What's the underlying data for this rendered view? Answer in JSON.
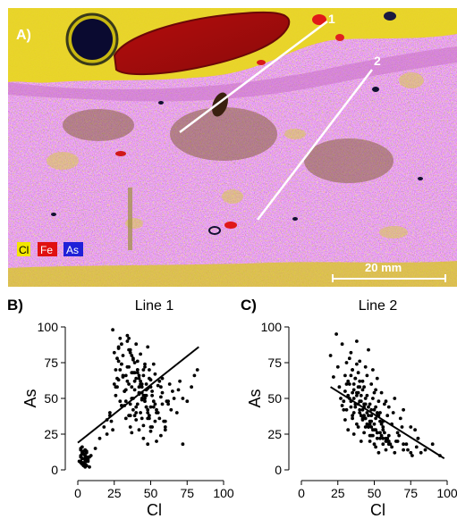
{
  "map": {
    "panel_label": "A)",
    "line_labels": [
      "1",
      "2"
    ],
    "legend": [
      {
        "label": "Cl",
        "color": "#f2e600"
      },
      {
        "label": "Fe",
        "color": "#e01010"
      },
      {
        "label": "As",
        "color": "#2020d8"
      }
    ],
    "scale_bar": "20 mm"
  },
  "chart_data": [
    {
      "type": "scatter",
      "panel_label": "B)",
      "title": "Line 1",
      "xlabel": "Cl",
      "ylabel": "As",
      "xlim": [
        0,
        100
      ],
      "ylim": [
        0,
        100
      ],
      "xticks": [
        0,
        25,
        50,
        75,
        100
      ],
      "yticks": [
        0,
        25,
        50,
        75,
        100
      ],
      "trendline": {
        "x": [
          0,
          83
        ],
        "y": [
          19,
          86
        ]
      },
      "points": {
        "x": [
          2,
          3,
          4,
          5,
          3,
          6,
          2,
          4,
          7,
          5,
          3,
          8,
          4,
          2,
          6,
          5,
          3,
          9,
          4,
          6,
          2,
          5,
          7,
          3,
          4,
          1,
          6,
          3,
          5,
          2,
          4,
          8,
          3,
          5,
          6,
          2,
          7,
          4,
          3,
          5,
          12,
          15,
          18,
          20,
          22,
          24,
          26,
          27,
          28,
          29,
          30,
          30,
          31,
          32,
          33,
          33,
          34,
          35,
          35,
          36,
          36,
          37,
          37,
          38,
          38,
          39,
          39,
          40,
          40,
          41,
          41,
          42,
          42,
          43,
          43,
          44,
          44,
          45,
          45,
          46,
          46,
          47,
          47,
          48,
          48,
          49,
          49,
          50,
          50,
          51,
          52,
          53,
          54,
          55,
          56,
          57,
          58,
          60,
          62,
          65,
          68,
          70,
          72,
          75,
          78,
          80,
          82,
          20,
          23,
          25,
          27,
          28,
          29,
          31,
          32,
          34,
          35,
          36,
          37,
          38,
          39,
          40,
          41,
          42,
          43,
          44,
          45,
          46,
          47,
          48,
          49,
          50,
          51,
          52,
          53,
          55,
          57,
          59,
          61,
          63,
          66,
          69,
          72,
          24,
          26,
          28,
          30,
          32,
          34,
          36,
          38,
          40,
          42,
          44,
          46,
          48,
          50,
          52,
          54,
          56,
          58,
          60,
          62,
          64,
          35,
          37,
          39,
          41,
          43,
          45,
          47,
          49,
          28,
          31,
          33,
          36,
          39,
          42,
          45,
          48,
          51,
          54,
          57,
          60,
          30,
          34,
          38,
          42,
          46,
          50,
          25,
          27,
          29,
          33,
          37,
          41,
          44,
          47,
          22,
          26,
          30,
          35,
          40,
          44,
          48,
          53,
          58
        ],
        "y": [
          5,
          8,
          3,
          10,
          12,
          6,
          15,
          4,
          9,
          7,
          11,
          2,
          13,
          6,
          8,
          14,
          5,
          10,
          3,
          12,
          9,
          4,
          7,
          16,
          11,
          6,
          13,
          8,
          2,
          10,
          5,
          9,
          12,
          7,
          3,
          14,
          6,
          11,
          4,
          8,
          15,
          22,
          30,
          35,
          40,
          28,
          52,
          58,
          63,
          70,
          74,
          45,
          80,
          55,
          66,
          48,
          90,
          60,
          72,
          38,
          84,
          50,
          68,
          42,
          77,
          56,
          62,
          35,
          88,
          46,
          70,
          53,
          64,
          40,
          81,
          58,
          49,
          66,
          31,
          74,
          52,
          60,
          44,
          86,
          57,
          38,
          70,
          63,
          27,
          55,
          48,
          67,
          42,
          59,
          36,
          51,
          64,
          30,
          46,
          55,
          40,
          62,
          50,
          48,
          58,
          66,
          70,
          25,
          34,
          60,
          78,
          86,
          92,
          65,
          45,
          72,
          38,
          82,
          58,
          50,
          68,
          44,
          76,
          54,
          62,
          36,
          70,
          48,
          56,
          42,
          64,
          30,
          52,
          74,
          46,
          40,
          58,
          34,
          48,
          60,
          50,
          56,
          18,
          98,
          70,
          85,
          45,
          55,
          62,
          30,
          78,
          40,
          66,
          50,
          72,
          36,
          58,
          44,
          20,
          62,
          54,
          28,
          48,
          42,
          92,
          80,
          75,
          68,
          60,
          52,
          44,
          36,
          76,
          66,
          56,
          46,
          38,
          28,
          22,
          18,
          30,
          40,
          24,
          34,
          88,
          94,
          68,
          58,
          50,
          44,
          82,
          64,
          48,
          36,
          26,
          70,
          60,
          52,
          38,
          58,
          74,
          84,
          64,
          54,
          40,
          34,
          46
        ]
      }
    },
    {
      "type": "scatter",
      "panel_label": "C)",
      "title": "Line 2",
      "xlabel": "Cl",
      "ylabel": "As",
      "xlim": [
        0,
        100
      ],
      "ylim": [
        0,
        100
      ],
      "xticks": [
        0,
        25,
        50,
        75,
        100
      ],
      "yticks": [
        0,
        25,
        50,
        75,
        100
      ],
      "trendline": {
        "x": [
          20,
          98
        ],
        "y": [
          58,
          8
        ]
      },
      "points": {
        "x": [
          20,
          22,
          24,
          25,
          26,
          27,
          28,
          29,
          30,
          30,
          31,
          32,
          32,
          33,
          34,
          34,
          35,
          35,
          36,
          36,
          37,
          37,
          38,
          38,
          39,
          39,
          40,
          40,
          41,
          41,
          42,
          42,
          43,
          43,
          44,
          44,
          45,
          45,
          46,
          46,
          47,
          47,
          48,
          48,
          49,
          49,
          50,
          50,
          51,
          51,
          52,
          52,
          53,
          54,
          55,
          56,
          57,
          58,
          59,
          60,
          62,
          64,
          66,
          68,
          70,
          72,
          75,
          78,
          80,
          85,
          90,
          95,
          28,
          30,
          32,
          34,
          36,
          38,
          40,
          42,
          44,
          46,
          48,
          50,
          52,
          54,
          56,
          58,
          60,
          63,
          66,
          69,
          33,
          35,
          37,
          39,
          41,
          43,
          45,
          47,
          49,
          51,
          53,
          55,
          57,
          59,
          61,
          34,
          36,
          38,
          40,
          42,
          44,
          46,
          48,
          50,
          52,
          54,
          56,
          58,
          31,
          33,
          35,
          37,
          39,
          41,
          43,
          45,
          47,
          49,
          51,
          53,
          38,
          40,
          42,
          44,
          46,
          48,
          50,
          52,
          54,
          56,
          58,
          60,
          62,
          64,
          67,
          70,
          73,
          76,
          79,
          82,
          29,
          31,
          35,
          39,
          43,
          47,
          51,
          55,
          59,
          36,
          40,
          44,
          48,
          52,
          56,
          60,
          65,
          70,
          75,
          80
        ],
        "y": [
          80,
          65,
          95,
          72,
          58,
          50,
          88,
          42,
          66,
          35,
          75,
          52,
          28,
          60,
          44,
          82,
          38,
          70,
          56,
          25,
          64,
          46,
          90,
          32,
          54,
          68,
          40,
          76,
          48,
          20,
          62,
          36,
          58,
          44,
          72,
          30,
          52,
          66,
          38,
          84,
          46,
          24,
          60,
          34,
          50,
          70,
          42,
          28,
          56,
          36,
          64,
          22,
          48,
          40,
          54,
          30,
          46,
          20,
          38,
          44,
          32,
          50,
          26,
          36,
          42,
          18,
          30,
          28,
          22,
          14,
          18,
          10,
          45,
          55,
          62,
          48,
          40,
          52,
          58,
          35,
          46,
          30,
          42,
          54,
          38,
          26,
          34,
          48,
          24,
          40,
          20,
          30,
          78,
          70,
          64,
          58,
          52,
          46,
          40,
          34,
          28,
          44,
          38,
          32,
          26,
          22,
          18,
          66,
          60,
          54,
          48,
          42,
          36,
          30,
          24,
          18,
          40,
          34,
          28,
          22,
          42,
          50,
          36,
          44,
          30,
          38,
          26,
          32,
          20,
          24,
          16,
          12,
          74,
          62,
          56,
          50,
          44,
          38,
          32,
          26,
          22,
          18,
          14,
          20,
          16,
          12,
          24,
          18,
          14,
          10,
          16,
          12,
          48,
          60,
          54,
          46,
          38,
          32,
          28,
          24,
          20,
          50,
          42,
          36,
          30,
          26,
          22,
          18,
          20,
          14,
          12,
          22
        ]
      }
    }
  ]
}
